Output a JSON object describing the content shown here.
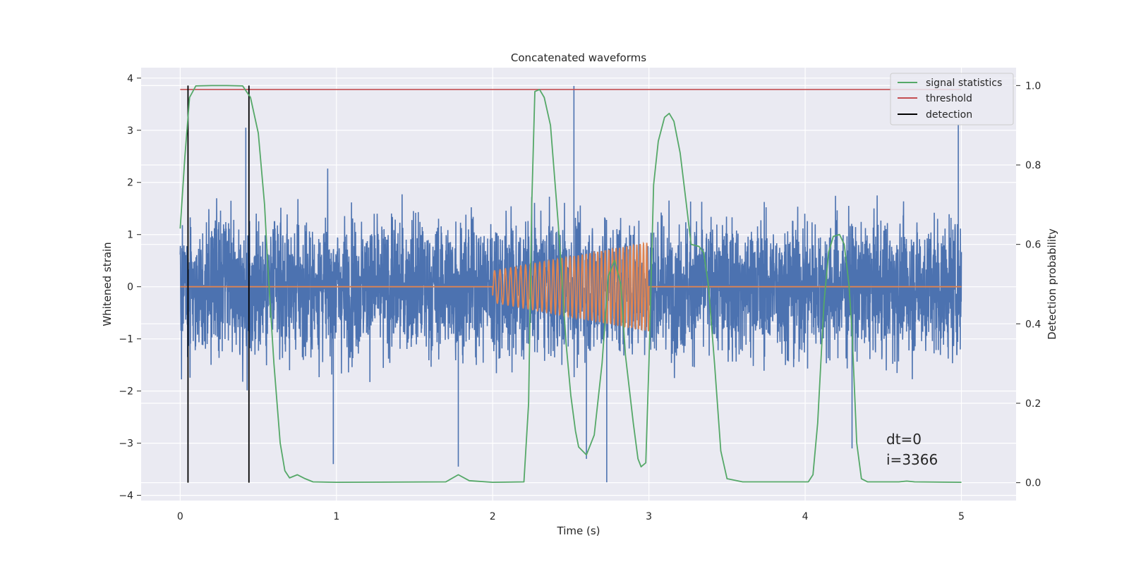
{
  "chart_data": {
    "type": "line",
    "title": "Concatenated waveforms",
    "xlabel": "Time (s)",
    "ylabel": "Whitened strain",
    "y2label": "Detection probability",
    "xlim": [
      -0.25,
      5.35
    ],
    "ylim": [
      -4.1,
      4.2
    ],
    "y2lim": [
      -0.045,
      1.045
    ],
    "xticks": [
      0,
      1,
      2,
      3,
      4,
      5
    ],
    "yticks": [
      -4,
      -3,
      -2,
      -1,
      0,
      1,
      2,
      3,
      4
    ],
    "y2ticks": [
      0.0,
      0.2,
      0.4,
      0.6,
      0.8,
      1.0
    ],
    "y2ticklabels": [
      "0.0",
      "0.2",
      "0.4",
      "0.6",
      "0.8",
      "1.0"
    ],
    "grid": true,
    "legend_position": "top-right",
    "legend": [
      {
        "label": "signal statistics",
        "color": "#55a868"
      },
      {
        "label": "threshold",
        "color": "#c44e52"
      },
      {
        "label": "detection",
        "color": "#000000"
      }
    ],
    "annotations": [
      "dt=0",
      "i=3366"
    ],
    "series": {
      "noise": {
        "color": "#4c72b0",
        "x_range": [
          0,
          5
        ],
        "typical_amplitude": 1.3,
        "peak_max": 3.85,
        "peak_min": -3.75
      },
      "template": {
        "color": "#dd8452",
        "x_range": [
          2,
          3
        ],
        "amplitude_start": 0.3,
        "amplitude_end": 0.85,
        "value_outside": 0
      },
      "signal_statistics": {
        "axis": "right",
        "color": "#55a868",
        "points": [
          [
            0.0,
            0.64
          ],
          [
            0.03,
            0.82
          ],
          [
            0.06,
            0.97
          ],
          [
            0.1,
            0.999
          ],
          [
            0.2,
            1.0
          ],
          [
            0.3,
            1.0
          ],
          [
            0.4,
            0.999
          ],
          [
            0.45,
            0.97
          ],
          [
            0.5,
            0.88
          ],
          [
            0.54,
            0.7
          ],
          [
            0.56,
            0.55
          ],
          [
            0.6,
            0.3
          ],
          [
            0.64,
            0.1
          ],
          [
            0.67,
            0.03
          ],
          [
            0.7,
            0.012
          ],
          [
            0.75,
            0.02
          ],
          [
            0.8,
            0.01
          ],
          [
            0.85,
            0.002
          ],
          [
            1.0,
            0.001
          ],
          [
            1.7,
            0.002
          ],
          [
            1.78,
            0.02
          ],
          [
            1.85,
            0.005
          ],
          [
            2.0,
            0.001
          ],
          [
            2.2,
            0.002
          ],
          [
            2.23,
            0.2
          ],
          [
            2.25,
            0.7
          ],
          [
            2.27,
            0.985
          ],
          [
            2.3,
            0.99
          ],
          [
            2.33,
            0.97
          ],
          [
            2.37,
            0.9
          ],
          [
            2.42,
            0.65
          ],
          [
            2.47,
            0.35
          ],
          [
            2.5,
            0.22
          ],
          [
            2.53,
            0.13
          ],
          [
            2.55,
            0.09
          ],
          [
            2.6,
            0.07
          ],
          [
            2.65,
            0.12
          ],
          [
            2.7,
            0.3
          ],
          [
            2.74,
            0.52
          ],
          [
            2.78,
            0.56
          ],
          [
            2.82,
            0.5
          ],
          [
            2.85,
            0.32
          ],
          [
            2.9,
            0.15
          ],
          [
            2.93,
            0.06
          ],
          [
            2.95,
            0.04
          ],
          [
            2.98,
            0.05
          ],
          [
            3.0,
            0.3
          ],
          [
            3.03,
            0.75
          ],
          [
            3.06,
            0.86
          ],
          [
            3.1,
            0.92
          ],
          [
            3.13,
            0.93
          ],
          [
            3.16,
            0.91
          ],
          [
            3.2,
            0.83
          ],
          [
            3.24,
            0.7
          ],
          [
            3.27,
            0.6
          ],
          [
            3.32,
            0.595
          ],
          [
            3.35,
            0.58
          ],
          [
            3.38,
            0.5
          ],
          [
            3.42,
            0.3
          ],
          [
            3.46,
            0.08
          ],
          [
            3.5,
            0.01
          ],
          [
            3.6,
            0.002
          ],
          [
            4.02,
            0.002
          ],
          [
            4.05,
            0.02
          ],
          [
            4.08,
            0.15
          ],
          [
            4.12,
            0.45
          ],
          [
            4.15,
            0.58
          ],
          [
            4.18,
            0.62
          ],
          [
            4.22,
            0.625
          ],
          [
            4.25,
            0.6
          ],
          [
            4.28,
            0.5
          ],
          [
            4.3,
            0.38
          ],
          [
            4.33,
            0.1
          ],
          [
            4.36,
            0.01
          ],
          [
            4.4,
            0.002
          ],
          [
            4.6,
            0.002
          ],
          [
            4.65,
            0.004
          ],
          [
            4.7,
            0.002
          ],
          [
            5.0,
            0.001
          ]
        ]
      },
      "threshold": {
        "axis": "right",
        "color": "#c44e52",
        "x_range": [
          0,
          5
        ],
        "value": 0.99
      },
      "detection": {
        "axis": "right",
        "color": "#000000",
        "x": [
          0.05,
          0.44
        ],
        "y_range": [
          0.0,
          1.0
        ]
      }
    }
  }
}
